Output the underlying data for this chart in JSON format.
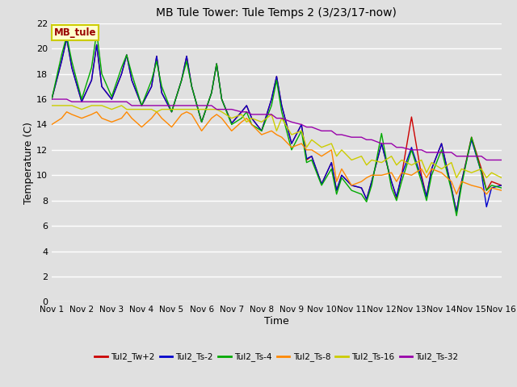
{
  "title": "MB Tule Tower: Tule Temps 2 (3/23/17-now)",
  "xlabel": "Time",
  "ylabel": "Temperature (C)",
  "xlim": [
    0,
    15
  ],
  "ylim": [
    0,
    22
  ],
  "yticks": [
    0,
    2,
    4,
    6,
    8,
    10,
    12,
    14,
    16,
    18,
    20,
    22
  ],
  "xtick_positions": [
    0,
    1,
    2,
    3,
    4,
    5,
    6,
    7,
    8,
    9,
    10,
    11,
    12,
    13,
    14,
    15
  ],
  "xtick_labels": [
    "Nov 1",
    "Nov 2",
    "Nov 3",
    "Nov 4",
    "Nov 5",
    "Nov 6",
    "Nov 7",
    "Nov 8",
    "Nov 9",
    "Nov 10",
    "Nov 11",
    "Nov 12",
    "Nov 13",
    "Nov 14",
    "Nov 15",
    "Nov 16"
  ],
  "background_color": "#e0e0e0",
  "plot_bg_color": "#e0e0e0",
  "grid_color": "#ffffff",
  "annotation_text": "MB_tule",
  "annotation_color": "#990000",
  "annotation_bg": "#ffffcc",
  "annotation_border": "#cccc00",
  "series": {
    "Tul2_Tw+2": {
      "color": "#cc0000",
      "x": [
        0.0,
        0.33,
        0.5,
        0.67,
        1.0,
        1.33,
        1.5,
        1.67,
        2.0,
        2.33,
        2.5,
        2.67,
        3.0,
        3.33,
        3.5,
        3.67,
        4.0,
        4.33,
        4.5,
        4.67,
        5.0,
        5.33,
        5.5,
        5.67,
        6.0,
        6.33,
        6.5,
        6.67,
        7.0,
        7.33,
        7.5,
        7.67,
        8.0,
        8.33,
        8.5,
        8.67,
        9.0,
        9.33,
        9.5,
        9.67,
        10.0,
        10.33,
        10.5,
        10.67,
        11.0,
        11.33,
        11.5,
        11.67,
        12.0,
        12.33,
        12.5,
        12.67,
        13.0,
        13.33,
        13.5,
        13.67,
        14.0,
        14.33,
        14.5,
        14.67,
        15.0
      ],
      "y": [
        16.0,
        19.0,
        20.8,
        18.5,
        15.8,
        17.5,
        20.3,
        17.0,
        16.0,
        18.0,
        19.5,
        17.5,
        15.5,
        17.0,
        19.4,
        16.5,
        15.0,
        17.5,
        19.4,
        17.0,
        14.2,
        16.5,
        18.8,
        16.0,
        14.1,
        15.0,
        15.5,
        14.5,
        13.5,
        16.0,
        17.8,
        15.5,
        12.5,
        14.0,
        11.2,
        11.5,
        9.3,
        11.0,
        8.8,
        10.0,
        9.2,
        9.0,
        8.1,
        9.5,
        12.5,
        9.5,
        8.2,
        10.0,
        14.6,
        10.0,
        8.3,
        10.5,
        12.5,
        9.0,
        7.1,
        9.5,
        13.0,
        10.5,
        8.8,
        9.5,
        9.2
      ]
    },
    "Tul2_Ts-2": {
      "color": "#0000cc",
      "x": [
        0.0,
        0.33,
        0.5,
        0.67,
        1.0,
        1.33,
        1.5,
        1.67,
        2.0,
        2.33,
        2.5,
        2.67,
        3.0,
        3.33,
        3.5,
        3.67,
        4.0,
        4.33,
        4.5,
        4.67,
        5.0,
        5.33,
        5.5,
        5.67,
        6.0,
        6.33,
        6.5,
        6.67,
        7.0,
        7.33,
        7.5,
        7.67,
        8.0,
        8.33,
        8.5,
        8.67,
        9.0,
        9.33,
        9.5,
        9.67,
        10.0,
        10.33,
        10.5,
        10.67,
        11.0,
        11.33,
        11.5,
        11.67,
        12.0,
        12.33,
        12.5,
        12.67,
        13.0,
        13.33,
        13.5,
        13.67,
        14.0,
        14.33,
        14.5,
        14.67,
        15.0
      ],
      "y": [
        16.0,
        19.0,
        20.8,
        18.5,
        15.8,
        17.5,
        20.3,
        17.0,
        16.0,
        18.0,
        19.5,
        17.5,
        15.5,
        17.0,
        19.4,
        16.5,
        15.0,
        17.5,
        19.4,
        17.0,
        14.2,
        16.5,
        18.8,
        16.0,
        14.1,
        15.0,
        15.5,
        14.5,
        13.5,
        16.0,
        17.8,
        15.5,
        12.5,
        14.0,
        11.3,
        11.5,
        9.3,
        11.0,
        8.8,
        10.0,
        9.2,
        9.0,
        8.1,
        9.5,
        12.5,
        9.5,
        8.3,
        10.0,
        12.2,
        9.8,
        8.3,
        10.5,
        12.5,
        9.0,
        7.1,
        9.5,
        12.8,
        10.2,
        7.5,
        9.0,
        9.2
      ]
    },
    "Tul2_Ts-4": {
      "color": "#00aa00",
      "x": [
        0.0,
        0.33,
        0.5,
        0.67,
        1.0,
        1.33,
        1.5,
        1.67,
        2.0,
        2.33,
        2.5,
        2.67,
        3.0,
        3.33,
        3.5,
        3.67,
        4.0,
        4.33,
        4.5,
        4.67,
        5.0,
        5.33,
        5.5,
        5.67,
        6.0,
        6.33,
        6.5,
        6.67,
        7.0,
        7.33,
        7.5,
        7.67,
        8.0,
        8.33,
        8.5,
        8.67,
        9.0,
        9.33,
        9.5,
        9.67,
        10.0,
        10.33,
        10.5,
        10.67,
        11.0,
        11.33,
        11.5,
        11.67,
        12.0,
        12.33,
        12.5,
        12.67,
        13.0,
        13.33,
        13.5,
        13.67,
        14.0,
        14.33,
        14.5,
        14.67,
        15.0
      ],
      "y": [
        16.0,
        19.5,
        21.0,
        19.0,
        16.0,
        18.5,
        21.3,
        18.0,
        16.2,
        18.5,
        19.5,
        18.0,
        15.5,
        17.5,
        19.0,
        17.0,
        15.0,
        17.5,
        19.0,
        17.0,
        14.2,
        16.5,
        18.8,
        16.0,
        14.0,
        14.5,
        15.0,
        14.0,
        13.5,
        15.5,
        17.5,
        15.0,
        12.0,
        13.5,
        11.0,
        11.2,
        9.2,
        10.5,
        8.5,
        9.8,
        8.8,
        8.5,
        7.9,
        9.2,
        13.3,
        9.0,
        8.0,
        9.5,
        12.0,
        9.5,
        8.0,
        10.0,
        12.0,
        8.8,
        6.8,
        9.2,
        13.0,
        10.2,
        8.8,
        9.2,
        9.0
      ]
    },
    "Tul2_Ts-8": {
      "color": "#ff8800",
      "x": [
        0.0,
        0.33,
        0.5,
        0.67,
        1.0,
        1.33,
        1.5,
        1.67,
        2.0,
        2.33,
        2.5,
        2.67,
        3.0,
        3.33,
        3.5,
        3.67,
        4.0,
        4.33,
        4.5,
        4.67,
        5.0,
        5.33,
        5.5,
        5.67,
        6.0,
        6.33,
        6.5,
        6.67,
        7.0,
        7.33,
        7.5,
        7.67,
        8.0,
        8.33,
        8.5,
        8.67,
        9.0,
        9.33,
        9.5,
        9.67,
        10.0,
        10.33,
        10.5,
        10.67,
        11.0,
        11.33,
        11.5,
        11.67,
        12.0,
        12.33,
        12.5,
        12.67,
        13.0,
        13.33,
        13.5,
        13.67,
        14.0,
        14.33,
        14.5,
        14.67,
        15.0
      ],
      "y": [
        14.0,
        14.5,
        15.0,
        14.8,
        14.5,
        14.8,
        15.0,
        14.5,
        14.2,
        14.5,
        15.0,
        14.5,
        13.8,
        14.5,
        15.0,
        14.5,
        13.8,
        14.8,
        15.0,
        14.8,
        13.5,
        14.5,
        14.8,
        14.5,
        13.5,
        14.2,
        14.5,
        14.0,
        13.2,
        13.5,
        13.2,
        13.0,
        12.2,
        12.5,
        12.0,
        12.0,
        11.5,
        12.0,
        9.5,
        10.5,
        9.2,
        9.5,
        9.8,
        10.0,
        10.0,
        10.2,
        9.5,
        10.2,
        10.0,
        10.5,
        9.8,
        10.5,
        10.2,
        9.5,
        8.5,
        9.5,
        9.2,
        9.0,
        8.5,
        9.0,
        8.8
      ]
    },
    "Tul2_Ts-16": {
      "color": "#cccc00",
      "x": [
        0.0,
        0.33,
        0.5,
        0.67,
        1.0,
        1.33,
        1.5,
        1.67,
        2.0,
        2.33,
        2.5,
        2.67,
        3.0,
        3.33,
        3.5,
        3.67,
        4.0,
        4.33,
        4.5,
        4.67,
        5.0,
        5.33,
        5.5,
        5.67,
        6.0,
        6.33,
        6.5,
        6.67,
        7.0,
        7.33,
        7.5,
        7.67,
        8.0,
        8.33,
        8.5,
        8.67,
        9.0,
        9.33,
        9.5,
        9.67,
        10.0,
        10.33,
        10.5,
        10.67,
        11.0,
        11.33,
        11.5,
        11.67,
        12.0,
        12.33,
        12.5,
        12.67,
        13.0,
        13.33,
        13.5,
        13.67,
        14.0,
        14.33,
        14.5,
        14.67,
        15.0
      ],
      "y": [
        15.5,
        15.5,
        15.5,
        15.5,
        15.2,
        15.5,
        15.5,
        15.5,
        15.2,
        15.5,
        15.2,
        15.2,
        15.2,
        15.2,
        15.0,
        15.2,
        15.2,
        15.2,
        15.2,
        15.2,
        15.2,
        15.2,
        15.2,
        15.0,
        14.5,
        14.8,
        14.2,
        14.5,
        14.2,
        14.8,
        13.5,
        14.5,
        13.2,
        13.5,
        12.2,
        12.8,
        12.2,
        12.5,
        11.5,
        12.0,
        11.2,
        11.5,
        10.8,
        11.2,
        11.0,
        11.5,
        10.8,
        11.2,
        10.8,
        11.2,
        10.2,
        11.0,
        10.5,
        11.0,
        9.8,
        10.5,
        10.2,
        10.5,
        9.8,
        10.2,
        9.8
      ]
    },
    "Tul2_Ts-32": {
      "color": "#9900aa",
      "x": [
        0.0,
        0.33,
        0.5,
        0.67,
        1.0,
        1.33,
        1.5,
        1.67,
        2.0,
        2.33,
        2.5,
        2.67,
        3.0,
        3.33,
        3.5,
        3.67,
        4.0,
        4.33,
        4.5,
        4.67,
        5.0,
        5.33,
        5.5,
        5.67,
        6.0,
        6.33,
        6.5,
        6.67,
        7.0,
        7.33,
        7.5,
        7.67,
        8.0,
        8.33,
        8.5,
        8.67,
        9.0,
        9.33,
        9.5,
        9.67,
        10.0,
        10.33,
        10.5,
        10.67,
        11.0,
        11.33,
        11.5,
        11.67,
        12.0,
        12.33,
        12.5,
        12.67,
        13.0,
        13.33,
        13.5,
        13.67,
        14.0,
        14.33,
        14.5,
        14.67,
        15.0
      ],
      "y": [
        16.0,
        16.0,
        16.0,
        15.8,
        15.8,
        15.8,
        15.8,
        15.8,
        15.8,
        15.8,
        15.8,
        15.5,
        15.5,
        15.5,
        15.5,
        15.5,
        15.5,
        15.5,
        15.5,
        15.5,
        15.5,
        15.5,
        15.2,
        15.2,
        15.2,
        15.0,
        15.0,
        14.8,
        14.8,
        14.8,
        14.5,
        14.5,
        14.2,
        14.0,
        13.8,
        13.8,
        13.5,
        13.5,
        13.2,
        13.2,
        13.0,
        13.0,
        12.8,
        12.8,
        12.5,
        12.5,
        12.2,
        12.2,
        12.0,
        12.0,
        11.8,
        11.8,
        11.8,
        11.8,
        11.5,
        11.5,
        11.5,
        11.5,
        11.2,
        11.2,
        11.2
      ]
    }
  },
  "legend_order": [
    "Tul2_Tw+2",
    "Tul2_Ts-2",
    "Tul2_Ts-4",
    "Tul2_Ts-8",
    "Tul2_Ts-16",
    "Tul2_Ts-32"
  ]
}
